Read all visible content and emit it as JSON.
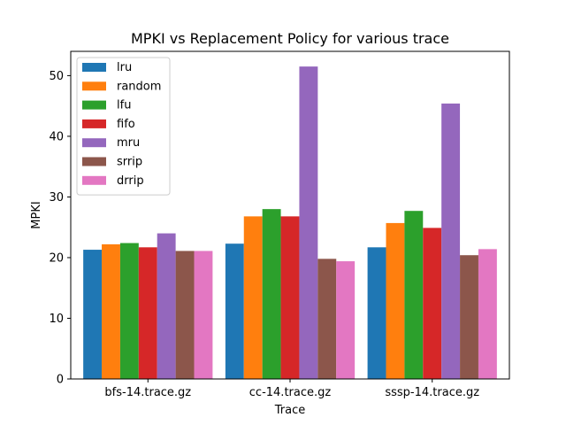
{
  "chart_data": {
    "type": "bar",
    "title": "MPKI vs Replacement Policy for various trace",
    "xlabel": "Trace",
    "ylabel": "MPKI",
    "categories": [
      "bfs-14.trace.gz",
      "cc-14.trace.gz",
      "sssp-14.trace.gz"
    ],
    "ylim": [
      0,
      54
    ],
    "yticks": [
      0,
      10,
      20,
      30,
      40,
      50
    ],
    "grid": false,
    "legend_position": "top-left",
    "series": [
      {
        "name": "lru",
        "color": "#1f77b4",
        "values": [
          21.3,
          22.3,
          21.7
        ]
      },
      {
        "name": "random",
        "color": "#ff7f0e",
        "values": [
          22.2,
          26.8,
          25.7
        ]
      },
      {
        "name": "lfu",
        "color": "#2ca02c",
        "values": [
          22.4,
          28.0,
          27.7
        ]
      },
      {
        "name": "fifo",
        "color": "#d62728",
        "values": [
          21.7,
          26.8,
          24.9
        ]
      },
      {
        "name": "mru",
        "color": "#9467bd",
        "values": [
          24.0,
          51.5,
          45.4
        ]
      },
      {
        "name": "srrip",
        "color": "#8c564b",
        "values": [
          21.1,
          19.8,
          20.4
        ]
      },
      {
        "name": "drrip",
        "color": "#e377c2",
        "values": [
          21.1,
          19.4,
          21.4
        ]
      }
    ]
  }
}
